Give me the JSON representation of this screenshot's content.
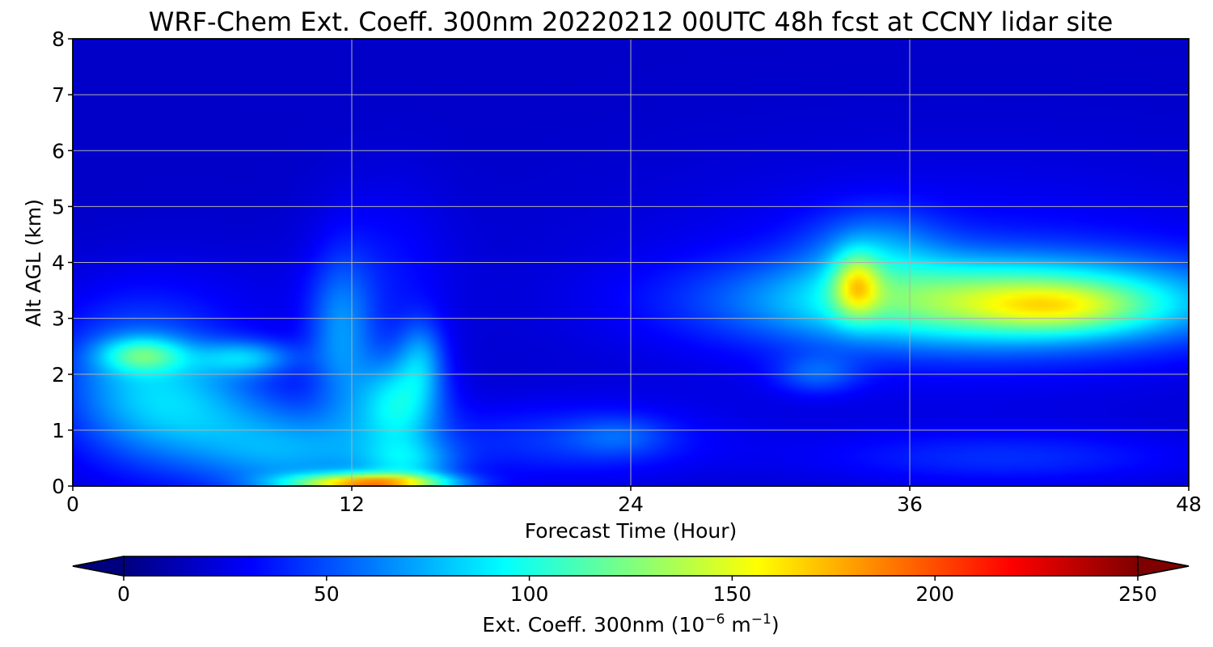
{
  "chart_data": {
    "type": "heatmap",
    "title": "WRF-Chem Ext. Coeff. 300nm  20220212 00UTC 48h fcst at CCNY lidar site",
    "xlabel": "Forecast Time (Hour)",
    "ylabel": "Alt AGL (km)",
    "x_ticks": [
      "0",
      "12",
      "24",
      "36",
      "48"
    ],
    "y_ticks": [
      "0",
      "1",
      "2",
      "3",
      "4",
      "5",
      "6",
      "7",
      "8"
    ],
    "xlim": [
      0,
      48
    ],
    "ylim": [
      0,
      8
    ],
    "grid": true,
    "colormap": "jet",
    "colorbar": {
      "orientation": "horizontal",
      "placement": "bottom",
      "label_main": "Ext. Coeff. 300nm  (10",
      "label_exp1": "−6",
      "label_mid": " m",
      "label_exp2": "−1",
      "label_end": ")",
      "range": [
        0,
        250
      ],
      "extend": "both",
      "ticks": [
        "0",
        "50",
        "100",
        "150",
        "200",
        "250"
      ],
      "colors": [
        "#00007f",
        "#0000ff",
        "#007fff",
        "#00ffff",
        "#7fff7f",
        "#ffff00",
        "#ff7f00",
        "#ff0000",
        "#7f0000"
      ]
    },
    "field": {
      "background": 18,
      "blobs": [
        {
          "x": 2.5,
          "y": 1.8,
          "sx": 2.5,
          "sy": 1.0,
          "v": 45
        },
        {
          "x": 3.0,
          "y": 2.35,
          "sx": 1.3,
          "sy": 0.22,
          "v": 55
        },
        {
          "x": 7.5,
          "y": 2.3,
          "sx": 1.5,
          "sy": 0.22,
          "v": 45
        },
        {
          "x": 5.5,
          "y": 1.4,
          "sx": 2.5,
          "sy": 0.7,
          "v": 35
        },
        {
          "x": 9.5,
          "y": 0.6,
          "sx": 3.0,
          "sy": 0.6,
          "v": 50
        },
        {
          "x": 14.0,
          "y": 1.5,
          "sx": 1.3,
          "sy": 0.6,
          "v": 65
        },
        {
          "x": 11.5,
          "y": 2.7,
          "sx": 1.0,
          "sy": 1.0,
          "v": 40
        },
        {
          "x": 15.0,
          "y": 2.3,
          "sx": 0.7,
          "sy": 0.5,
          "v": 35
        },
        {
          "x": 12.8,
          "y": 0.05,
          "sx": 2.4,
          "sy": 0.12,
          "v": 140
        },
        {
          "x": 14.5,
          "y": 0.4,
          "sx": 1.5,
          "sy": 0.3,
          "v": 40
        },
        {
          "x": 21.0,
          "y": 0.8,
          "sx": 4.5,
          "sy": 0.5,
          "v": 25
        },
        {
          "x": 23.5,
          "y": 0.9,
          "sx": 1.5,
          "sy": 0.25,
          "v": 18
        },
        {
          "x": 40.0,
          "y": 0.5,
          "sx": 6.0,
          "sy": 0.35,
          "v": 22
        },
        {
          "x": 32.0,
          "y": 2.0,
          "sx": 1.3,
          "sy": 0.25,
          "v": 28
        },
        {
          "x": 39.5,
          "y": 3.3,
          "sx": 7.0,
          "sy": 0.55,
          "v": 100
        },
        {
          "x": 42.5,
          "y": 3.2,
          "sx": 2.5,
          "sy": 0.3,
          "v": 40
        },
        {
          "x": 33.7,
          "y": 3.6,
          "sx": 0.7,
          "sy": 0.4,
          "v": 65
        },
        {
          "x": 34.5,
          "y": 4.3,
          "sx": 2.0,
          "sy": 0.5,
          "v": 30
        },
        {
          "x": 38.0,
          "y": 3.6,
          "sx": 10.0,
          "sy": 1.5,
          "v": 18
        },
        {
          "x": 13.5,
          "y": 3.8,
          "sx": 2.0,
          "sy": 1.2,
          "v": 15
        },
        {
          "x": 6.0,
          "y": 3.2,
          "sx": 4.0,
          "sy": 0.8,
          "v": 8
        }
      ]
    }
  }
}
